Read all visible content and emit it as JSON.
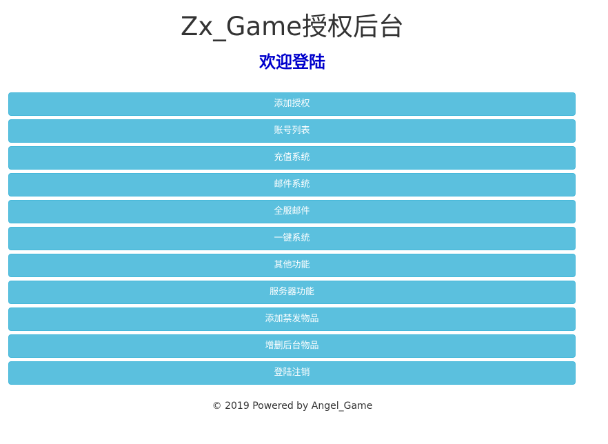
{
  "header": {
    "title": "Zx_Game授权后台",
    "subtitle": "欢迎登陆"
  },
  "menu": {
    "items": [
      {
        "label": "添加授权"
      },
      {
        "label": "账号列表"
      },
      {
        "label": "充值系统"
      },
      {
        "label": "邮件系统"
      },
      {
        "label": "全服邮件"
      },
      {
        "label": "一键系统"
      },
      {
        "label": "其他功能"
      },
      {
        "label": "服务器功能"
      },
      {
        "label": "添加禁发物品"
      },
      {
        "label": "增删后台物品"
      },
      {
        "label": "登陆注销"
      }
    ]
  },
  "footer": {
    "text": "© 2019 Powered by Angel_Game"
  },
  "colors": {
    "button": "#5bc0de",
    "subtitle": "#0000cc"
  }
}
